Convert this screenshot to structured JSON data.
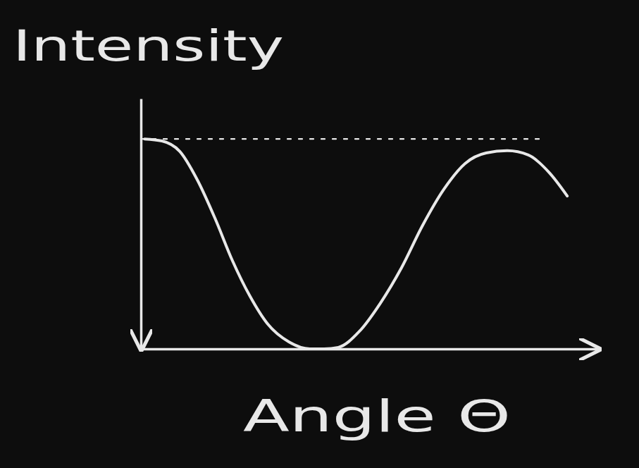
{
  "chart_data": {
    "type": "line",
    "y_label": "Intensity",
    "x_label": "Angle Θ",
    "x": [
      0.8,
      4.6,
      8.5,
      12.3,
      16.2,
      20.0,
      23.8,
      27.7,
      32.3,
      36.9,
      40.0,
      43.1,
      47.7,
      52.3,
      56.9,
      61.5,
      66.2,
      70.8,
      75.4,
      80.0,
      84.6,
      89.2,
      93.1
    ],
    "values": [
      83.9,
      83.1,
      78.9,
      67.6,
      52.1,
      35.2,
      21.1,
      9.9,
      2.8,
      0,
      0,
      0.6,
      7.0,
      18.3,
      32.4,
      49.3,
      63.9,
      74.1,
      78.3,
      79.2,
      77.5,
      70.4,
      61.1
    ],
    "color": "#e8e8e8",
    "xlim": [
      0,
      100
    ],
    "ylim": [
      0,
      100
    ],
    "tick_labels": false,
    "reference_line": {
      "y": 83.9,
      "x": [
        0,
        87
      ],
      "line_style": "dotted"
    }
  }
}
